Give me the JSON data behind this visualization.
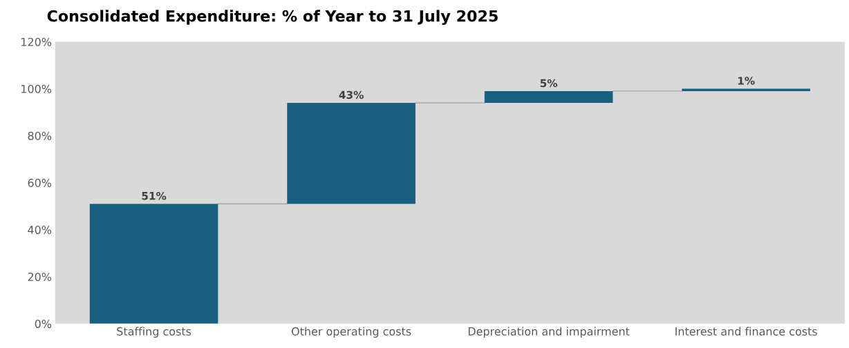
{
  "chart_data": {
    "type": "bar",
    "title": "Consolidated Expenditure: % of Year to 31 July 2025",
    "categories": [
      "Staffing costs",
      "Other operating costs",
      "Depreciation and impairment",
      "Interest and finance costs"
    ],
    "values": [
      51,
      43,
      5,
      1
    ],
    "base": [
      0,
      51,
      94,
      99
    ],
    "color": "#185f80",
    "value_labels": [
      "51%",
      "43%",
      "5%",
      "1%"
    ],
    "ylim": [
      0,
      120
    ],
    "yticks": [
      {
        "value": 0,
        "label": "0%"
      },
      {
        "value": 20,
        "label": "20%"
      },
      {
        "value": 40,
        "label": "40%"
      },
      {
        "value": 60,
        "label": "60%"
      },
      {
        "value": 80,
        "label": "80%"
      },
      {
        "value": 100,
        "label": "100%"
      },
      {
        "value": 120,
        "label": "120%"
      }
    ],
    "grid": false,
    "legend": false
  }
}
